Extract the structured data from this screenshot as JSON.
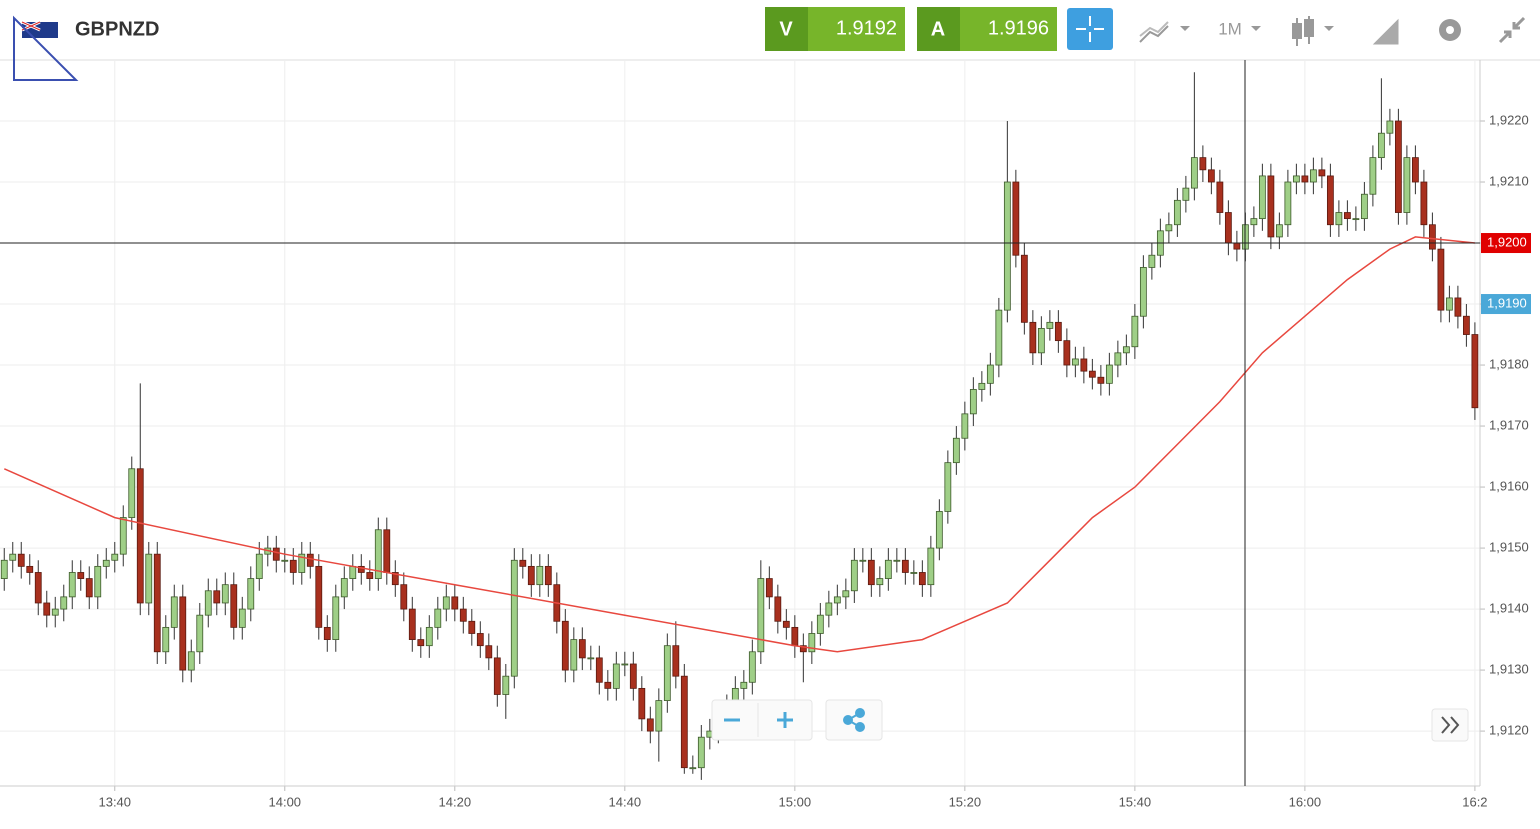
{
  "header": {
    "symbol": "GBPNZD",
    "sell_label": "V",
    "sell_price": "1.9192",
    "buy_label": "A",
    "buy_price": "1.9196",
    "timeframe": "1M"
  },
  "chart_data": {
    "type": "candlestick",
    "x": [
      807,
      808,
      809,
      810,
      811,
      812,
      813,
      814,
      815,
      816,
      817,
      818,
      819,
      820,
      821,
      822,
      823,
      824,
      825,
      826,
      827,
      828,
      829,
      830,
      831,
      832,
      833,
      834,
      835,
      836,
      837,
      838,
      839,
      840,
      841,
      842,
      843,
      844,
      845,
      846,
      847,
      848,
      849,
      850,
      851,
      852,
      853,
      854,
      855,
      856,
      857,
      858,
      859,
      860,
      861,
      862,
      863,
      864,
      865,
      866,
      867,
      868,
      869,
      870,
      871,
      872,
      873,
      874,
      875,
      876,
      877,
      878,
      879,
      880,
      881,
      882,
      883,
      884,
      885,
      886,
      887,
      888,
      889,
      890,
      891,
      892,
      893,
      894,
      895,
      896,
      897,
      898,
      899,
      900,
      901,
      902,
      903,
      904,
      905,
      906,
      907,
      908,
      909,
      910,
      911,
      912,
      913,
      914,
      915,
      916,
      917,
      918,
      919,
      920,
      921,
      922,
      923,
      924,
      925,
      926,
      927,
      928,
      929,
      930,
      931,
      932,
      933,
      934,
      935,
      936,
      937,
      938,
      939,
      940,
      941,
      942,
      943,
      944,
      945,
      946,
      947,
      948,
      949,
      950,
      951,
      952,
      953,
      954,
      955,
      956,
      957,
      958,
      959,
      960,
      961,
      962,
      963,
      964,
      965,
      966,
      967,
      968,
      969,
      970,
      971,
      972,
      973,
      974,
      975,
      976,
      977,
      978,
      979,
      980
    ],
    "open": [
      1.9145,
      1.9148,
      1.9149,
      1.9147,
      1.9146,
      1.9141,
      1.9139,
      1.914,
      1.9142,
      1.9146,
      1.9145,
      1.9142,
      1.9147,
      1.9148,
      1.9149,
      1.9155,
      1.9163,
      1.9141,
      1.9149,
      1.9133,
      1.9137,
      1.9142,
      1.913,
      1.9133,
      1.9139,
      1.9143,
      1.9141,
      1.9144,
      1.9137,
      1.914,
      1.9145,
      1.9149,
      1.915,
      1.9148,
      1.9148,
      1.9146,
      1.9149,
      1.9147,
      1.9137,
      1.9135,
      1.9142,
      1.9145,
      1.9147,
      1.9146,
      1.9145,
      1.9153,
      1.9146,
      1.9144,
      1.914,
      1.9135,
      1.9134,
      1.9137,
      1.914,
      1.9142,
      1.914,
      1.9138,
      1.9136,
      1.9134,
      1.9132,
      1.9126,
      1.9129,
      1.9148,
      1.9147,
      1.9144,
      1.9147,
      1.9144,
      1.9138,
      1.913,
      1.9135,
      1.9132,
      1.9132,
      1.9128,
      1.9127,
      1.9131,
      1.9131,
      1.9127,
      1.9122,
      1.912,
      1.9125,
      1.9134,
      1.9129,
      1.9114,
      1.9114,
      1.9119,
      1.912,
      1.9122,
      1.9124,
      1.9127,
      1.9128,
      1.9133,
      1.9145,
      1.9142,
      1.9138,
      1.9137,
      1.9134,
      1.9133,
      1.9136,
      1.9139,
      1.9141,
      1.9142,
      1.9143,
      1.9148,
      1.9148,
      1.9144,
      1.9145,
      1.9148,
      1.9148,
      1.9146,
      1.9146,
      1.9144,
      1.915,
      1.9156,
      1.9164,
      1.9168,
      1.9172,
      1.9176,
      1.9177,
      1.918,
      1.9189,
      1.921,
      1.9198,
      1.9187,
      1.9182,
      1.9186,
      1.9187,
      1.9184,
      1.918,
      1.9181,
      1.9179,
      1.9178,
      1.9177,
      1.918,
      1.9182,
      1.9183,
      1.9188,
      1.9196,
      1.9198,
      1.9202,
      1.9203,
      1.9207,
      1.9209,
      1.9214,
      1.9212,
      1.921,
      1.9205,
      1.92,
      1.9199,
      1.9203,
      1.9204,
      1.9211,
      1.9201,
      1.9203,
      1.921,
      1.9211,
      1.921,
      1.9212,
      1.9211,
      1.9203,
      1.9205,
      1.9204,
      1.9204,
      1.9208,
      1.9214,
      1.9218,
      1.922,
      1.9205,
      1.9214,
      1.921,
      1.9203,
      1.9199,
      1.9189,
      1.9191,
      1.9188,
      1.9185
    ],
    "high": [
      1.915,
      1.9151,
      1.9151,
      1.9149,
      1.9148,
      1.9143,
      1.9142,
      1.9144,
      1.9148,
      1.9148,
      1.9147,
      1.9149,
      1.915,
      1.9151,
      1.9157,
      1.9165,
      1.9177,
      1.9151,
      1.9151,
      1.9139,
      1.9144,
      1.9144,
      1.9135,
      1.9141,
      1.9145,
      1.9145,
      1.9146,
      1.9146,
      1.9142,
      1.9147,
      1.9151,
      1.9152,
      1.9152,
      1.915,
      1.915,
      1.9151,
      1.9151,
      1.9149,
      1.9139,
      1.9144,
      1.9147,
      1.9149,
      1.9149,
      1.9148,
      1.9155,
      1.9155,
      1.9148,
      1.9146,
      1.9142,
      1.9137,
      1.9139,
      1.9142,
      1.9144,
      1.9144,
      1.9142,
      1.914,
      1.9138,
      1.9136,
      1.9134,
      1.9131,
      1.915,
      1.915,
      1.9149,
      1.9149,
      1.9149,
      1.9146,
      1.914,
      1.9137,
      1.9137,
      1.9134,
      1.9134,
      1.913,
      1.9133,
      1.9133,
      1.9133,
      1.9129,
      1.9124,
      1.9127,
      1.9136,
      1.9138,
      1.9131,
      1.9116,
      1.9121,
      1.9122,
      1.9124,
      1.9126,
      1.9129,
      1.913,
      1.9135,
      1.9148,
      1.9147,
      1.9144,
      1.914,
      1.9139,
      1.9136,
      1.9138,
      1.9141,
      1.9143,
      1.9144,
      1.9145,
      1.915,
      1.915,
      1.915,
      1.9147,
      1.915,
      1.915,
      1.915,
      1.9148,
      1.9148,
      1.9152,
      1.9158,
      1.9166,
      1.917,
      1.9174,
      1.9178,
      1.9179,
      1.9182,
      1.9191,
      1.922,
      1.9212,
      1.92,
      1.9189,
      1.9188,
      1.9189,
      1.9189,
      1.9186,
      1.9183,
      1.9183,
      1.9181,
      1.918,
      1.9182,
      1.9184,
      1.9185,
      1.919,
      1.9198,
      1.92,
      1.9204,
      1.9205,
      1.9209,
      1.9211,
      1.9228,
      1.9216,
      1.9214,
      1.9212,
      1.9207,
      1.9202,
      1.9205,
      1.9206,
      1.9213,
      1.9213,
      1.9205,
      1.9212,
      1.9213,
      1.9213,
      1.9214,
      1.9214,
      1.9213,
      1.9207,
      1.9207,
      1.9206,
      1.921,
      1.9216,
      1.9227,
      1.9222,
      1.9222,
      1.9216,
      1.9216,
      1.9212,
      1.9205,
      1.9201,
      1.9193,
      1.9193,
      1.919,
      1.9187
    ],
    "low": [
      1.9143,
      1.9146,
      1.9145,
      1.9144,
      1.9139,
      1.9137,
      1.9137,
      1.9138,
      1.914,
      1.9143,
      1.914,
      1.914,
      1.9145,
      1.9146,
      1.9147,
      1.9153,
      1.9139,
      1.9139,
      1.9131,
      1.9131,
      1.9135,
      1.9128,
      1.9128,
      1.9131,
      1.9137,
      1.9139,
      1.9139,
      1.9135,
      1.9135,
      1.9138,
      1.9143,
      1.9147,
      1.9146,
      1.9146,
      1.9144,
      1.9144,
      1.9145,
      1.9135,
      1.9133,
      1.9133,
      1.914,
      1.9143,
      1.9144,
      1.9143,
      1.9143,
      1.9144,
      1.9142,
      1.9138,
      1.9133,
      1.9132,
      1.9132,
      1.9135,
      1.9138,
      1.9138,
      1.9136,
      1.9134,
      1.9132,
      1.913,
      1.9124,
      1.9122,
      1.9127,
      1.9145,
      1.9142,
      1.9142,
      1.9142,
      1.9136,
      1.9128,
      1.9128,
      1.913,
      1.913,
      1.9126,
      1.9125,
      1.9125,
      1.9129,
      1.9125,
      1.912,
      1.9118,
      1.9115,
      1.9123,
      1.9127,
      1.9113,
      1.9113,
      1.9112,
      1.9117,
      1.9118,
      1.912,
      1.9122,
      1.9125,
      1.9126,
      1.9131,
      1.914,
      1.9136,
      1.9135,
      1.9132,
      1.9128,
      1.9131,
      1.9134,
      1.9137,
      1.9139,
      1.914,
      1.9141,
      1.9146,
      1.9142,
      1.9142,
      1.9143,
      1.9146,
      1.9144,
      1.9144,
      1.9142,
      1.9142,
      1.9148,
      1.9154,
      1.9162,
      1.9166,
      1.917,
      1.9174,
      1.9175,
      1.9178,
      1.9187,
      1.9196,
      1.9185,
      1.918,
      1.918,
      1.9184,
      1.9182,
      1.9178,
      1.9178,
      1.9177,
      1.9176,
      1.9175,
      1.9175,
      1.9178,
      1.918,
      1.9181,
      1.9186,
      1.9194,
      1.9196,
      1.92,
      1.9201,
      1.9205,
      1.9207,
      1.921,
      1.9208,
      1.9203,
      1.9198,
      1.9197,
      1.9197,
      1.9201,
      1.9202,
      1.9199,
      1.9199,
      1.9201,
      1.9208,
      1.9208,
      1.9208,
      1.9209,
      1.9201,
      1.9201,
      1.9202,
      1.9202,
      1.9202,
      1.9206,
      1.9212,
      1.9216,
      1.9203,
      1.9203,
      1.9208,
      1.9201,
      1.9197,
      1.9187,
      1.9187,
      1.9186,
      1.9183,
      1.9171
    ],
    "close": [
      1.9148,
      1.9149,
      1.9147,
      1.9146,
      1.9141,
      1.9139,
      1.914,
      1.9142,
      1.9146,
      1.9145,
      1.9142,
      1.9147,
      1.9148,
      1.9149,
      1.9155,
      1.9163,
      1.9141,
      1.9149,
      1.9133,
      1.9137,
      1.9142,
      1.913,
      1.9133,
      1.9139,
      1.9143,
      1.9141,
      1.9144,
      1.9137,
      1.914,
      1.9145,
      1.9149,
      1.915,
      1.9148,
      1.9148,
      1.9146,
      1.9149,
      1.9147,
      1.9137,
      1.9135,
      1.9142,
      1.9145,
      1.9147,
      1.9146,
      1.9145,
      1.9153,
      1.9146,
      1.9144,
      1.914,
      1.9135,
      1.9134,
      1.9137,
      1.914,
      1.9142,
      1.914,
      1.9138,
      1.9136,
      1.9134,
      1.9132,
      1.9126,
      1.9129,
      1.9148,
      1.9147,
      1.9144,
      1.9147,
      1.9144,
      1.9138,
      1.913,
      1.9135,
      1.9132,
      1.9132,
      1.9128,
      1.9127,
      1.9131,
      1.9131,
      1.9127,
      1.9122,
      1.912,
      1.9125,
      1.9134,
      1.9129,
      1.9114,
      1.9114,
      1.9119,
      1.912,
      1.9122,
      1.9124,
      1.9127,
      1.9128,
      1.9133,
      1.9145,
      1.9142,
      1.9138,
      1.9137,
      1.9134,
      1.9133,
      1.9136,
      1.9139,
      1.9141,
      1.9142,
      1.9143,
      1.9148,
      1.9148,
      1.9144,
      1.9145,
      1.9148,
      1.9148,
      1.9146,
      1.9146,
      1.9144,
      1.915,
      1.9156,
      1.9164,
      1.9168,
      1.9172,
      1.9176,
      1.9177,
      1.918,
      1.9189,
      1.921,
      1.9198,
      1.9187,
      1.9182,
      1.9186,
      1.9187,
      1.9184,
      1.918,
      1.9181,
      1.9179,
      1.9178,
      1.9177,
      1.918,
      1.9182,
      1.9183,
      1.9188,
      1.9196,
      1.9198,
      1.9202,
      1.9203,
      1.9207,
      1.9209,
      1.9214,
      1.9212,
      1.921,
      1.9205,
      1.92,
      1.9199,
      1.9203,
      1.9204,
      1.9211,
      1.9201,
      1.9203,
      1.921,
      1.9211,
      1.921,
      1.9212,
      1.9211,
      1.9203,
      1.9205,
      1.9204,
      1.9204,
      1.9208,
      1.9214,
      1.9218,
      1.922,
      1.9205,
      1.9214,
      1.921,
      1.9203,
      1.9199,
      1.9189,
      1.9191,
      1.9188,
      1.9185,
      1.9173
    ],
    "up_color": "#9fcf87",
    "down_color": "#a8301e",
    "moving_average": {
      "color": "#e8483f",
      "x": [
        807,
        820,
        840,
        860,
        880,
        900,
        905,
        915,
        920,
        925,
        930,
        935,
        940,
        945,
        950,
        955,
        960,
        965,
        970,
        973,
        980
      ],
      "values": [
        1.9163,
        1.9155,
        1.9149,
        1.9144,
        1.9139,
        1.9134,
        1.9133,
        1.9135,
        1.9138,
        1.9141,
        1.9148,
        1.9155,
        1.916,
        1.9167,
        1.9174,
        1.9182,
        1.9188,
        1.9194,
        1.9199,
        1.9201,
        1.92
      ]
    },
    "price_markers": [
      {
        "value": 1.92,
        "label": "1,9200",
        "color": "#e00000"
      },
      {
        "value": 1.919,
        "label": "1,9190",
        "color": "#4aa8d8"
      }
    ],
    "xlim": [
      806.5,
      980.6
    ],
    "ylim": [
      1.9111,
      1.923
    ],
    "xticks": [
      {
        "value": 820,
        "label": "13:40"
      },
      {
        "value": 840,
        "label": "14:00"
      },
      {
        "value": 860,
        "label": "14:20"
      },
      {
        "value": 880,
        "label": "14:40"
      },
      {
        "value": 900,
        "label": "15:00"
      },
      {
        "value": 920,
        "label": "15:20"
      },
      {
        "value": 940,
        "label": "15:40"
      },
      {
        "value": 960,
        "label": "16:00"
      },
      {
        "value": 980,
        "label": "16:2"
      }
    ],
    "yticks": [
      {
        "value": 1.912,
        "label": "1,9120"
      },
      {
        "value": 1.913,
        "label": "1,9130"
      },
      {
        "value": 1.914,
        "label": "1,9140"
      },
      {
        "value": 1.915,
        "label": "1,9150"
      },
      {
        "value": 1.916,
        "label": "1,9160"
      },
      {
        "value": 1.917,
        "label": "1,9170"
      },
      {
        "value": 1.918,
        "label": "1,9180"
      },
      {
        "value": 1.919,
        "label": "1,9190"
      },
      {
        "value": 1.92,
        "label": "1,9200"
      },
      {
        "value": 1.921,
        "label": "1,9210"
      },
      {
        "value": 1.922,
        "label": "1,9220"
      }
    ],
    "grid": true
  }
}
